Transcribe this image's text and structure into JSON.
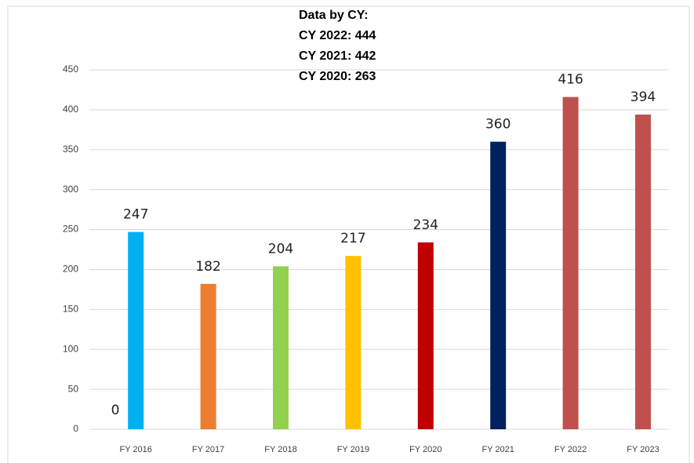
{
  "chart_data": {
    "type": "bar",
    "annotations": [
      "Data by CY:",
      "CY 2022: 444",
      "CY 2021: 442",
      "CY 2020: 263"
    ],
    "extra_label": "0",
    "categories": [
      "FY 2016",
      "FY 2017",
      "FY 2018",
      "FY 2019",
      "FY 2020",
      "FY 2021",
      "FY 2022",
      "FY 2023"
    ],
    "values": [
      247,
      182,
      204,
      217,
      234,
      360,
      416,
      394
    ],
    "colors": [
      "#00b0f0",
      "#ed7d31",
      "#92d050",
      "#ffc000",
      "#c00000",
      "#002060",
      "#c0504d",
      "#c0504d"
    ],
    "ylim": [
      0,
      450
    ],
    "yticks": [
      0,
      50,
      100,
      150,
      200,
      250,
      300,
      350,
      400,
      450
    ],
    "grid": true
  }
}
